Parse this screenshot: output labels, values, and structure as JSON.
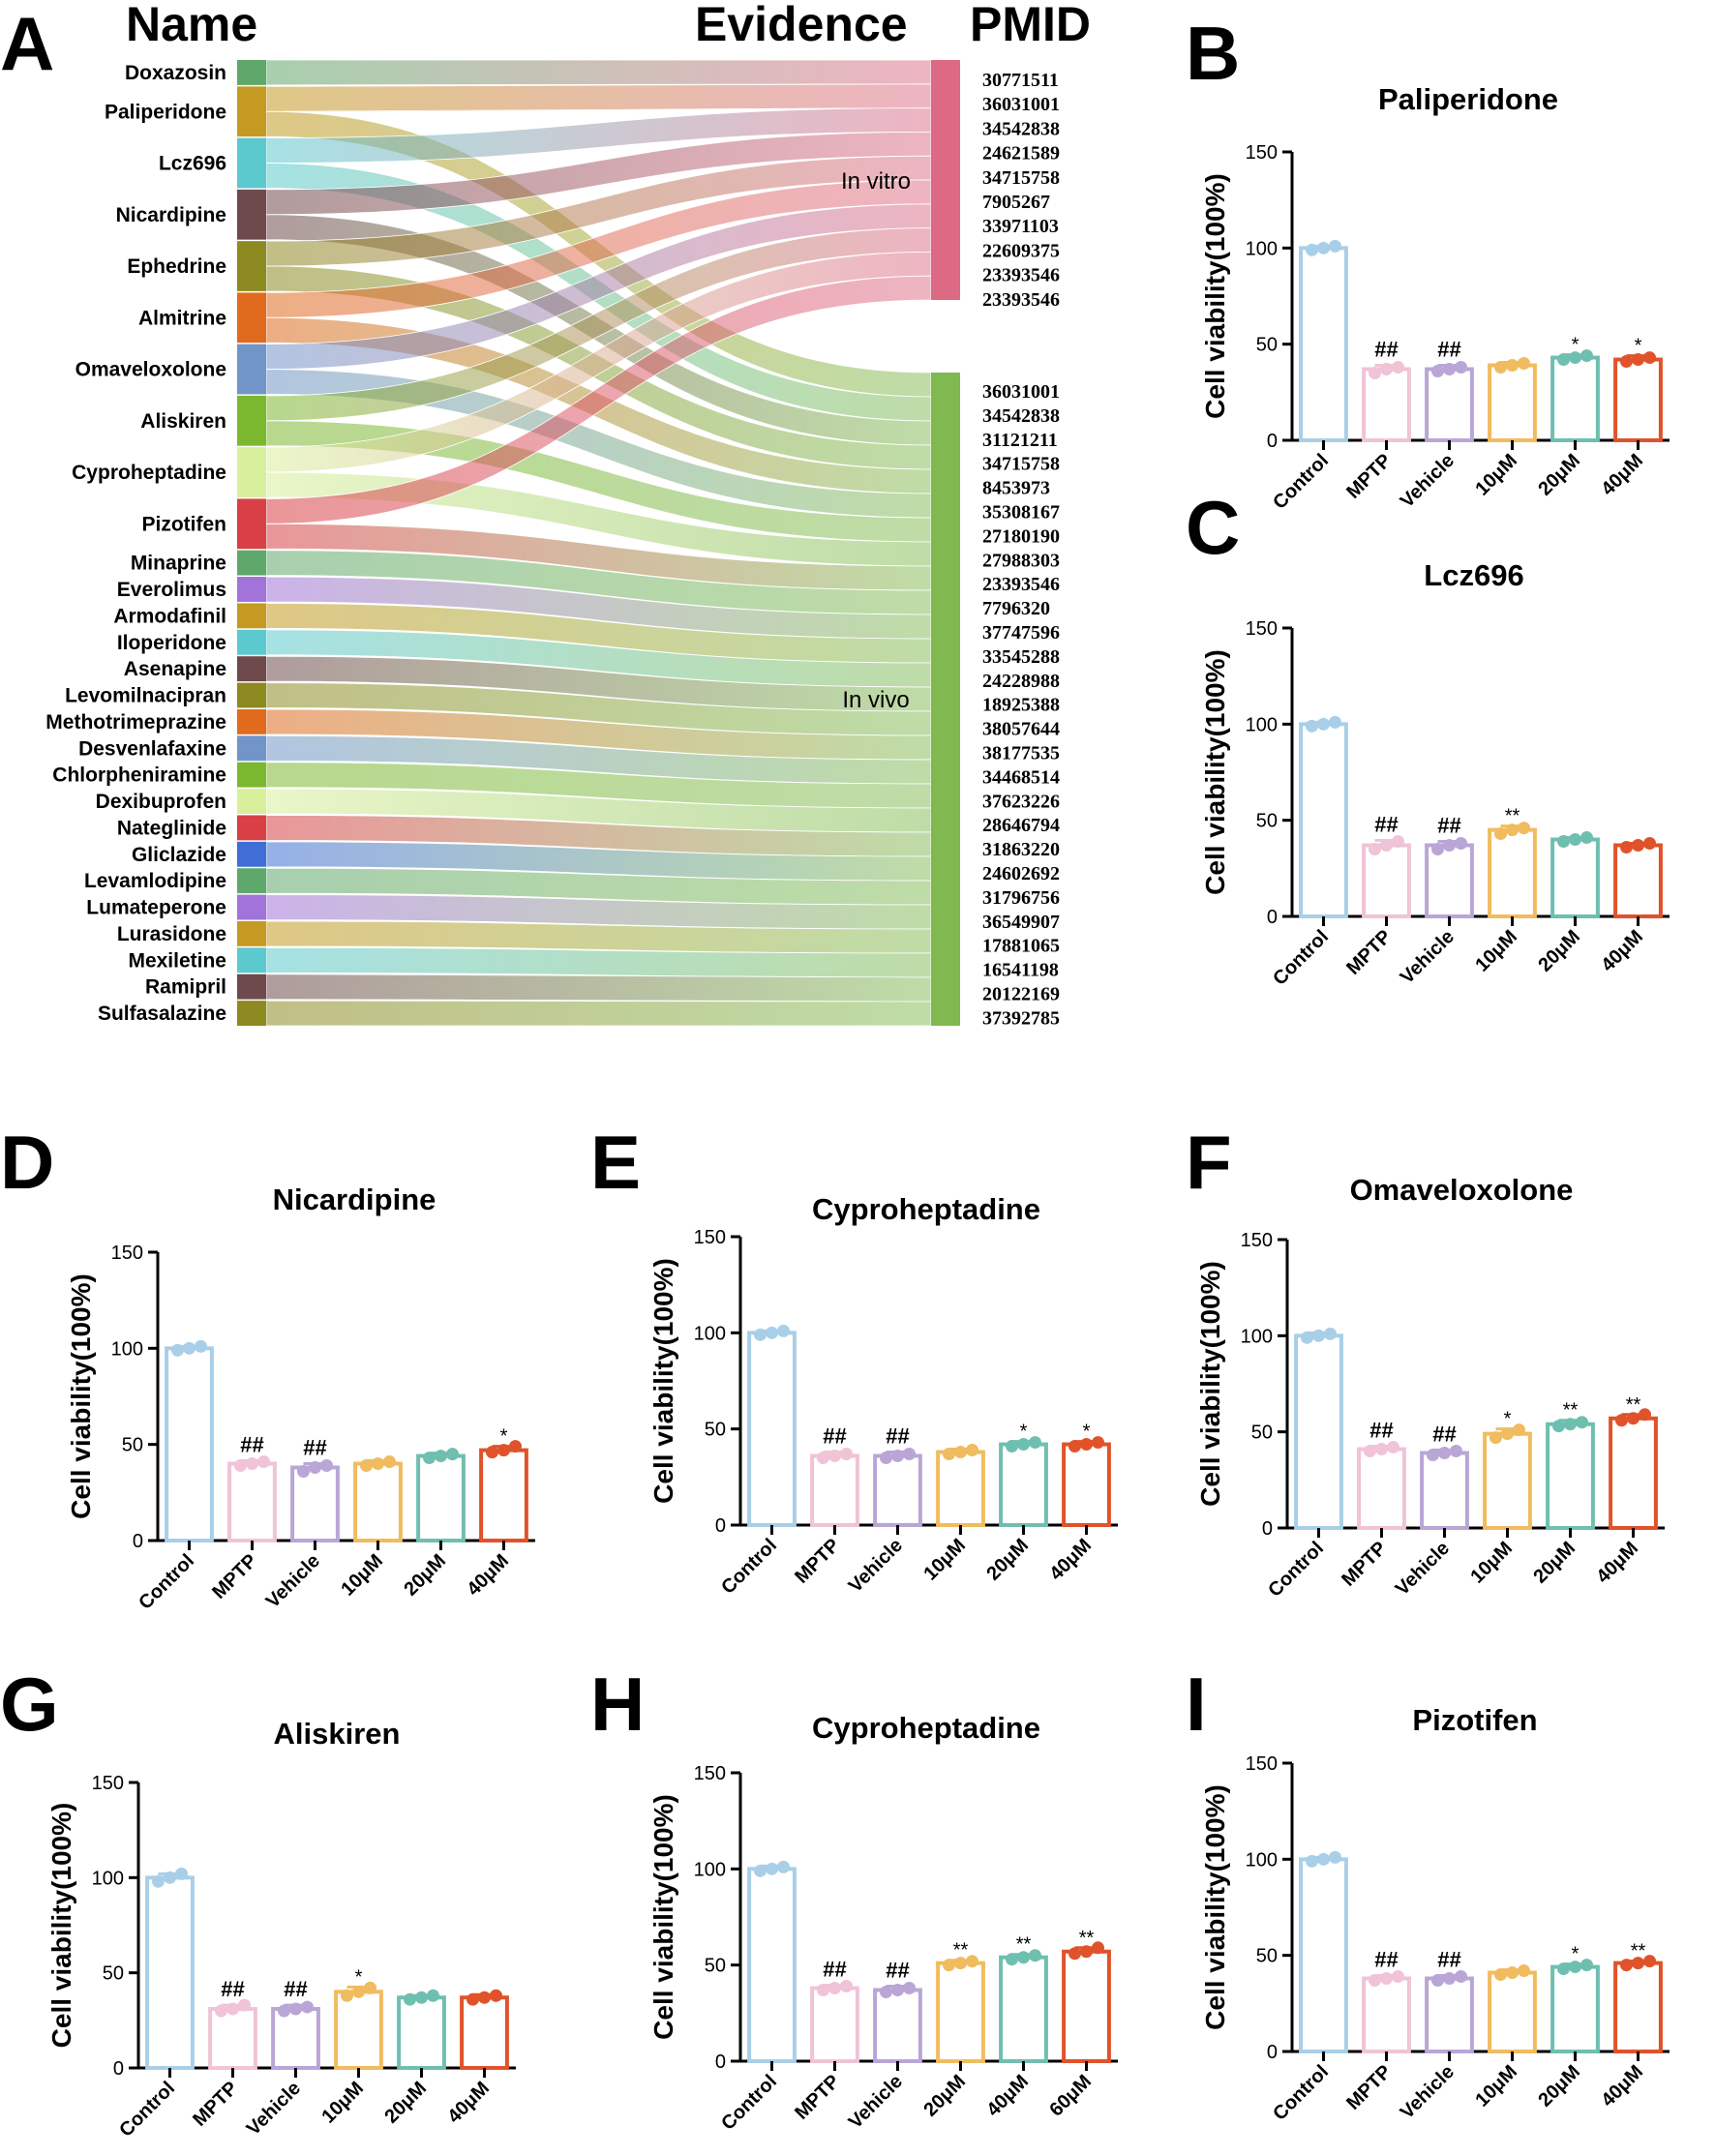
{
  "colors": {
    "control": "#a9cfe8",
    "mptp": "#f0c3d6",
    "vehicle": "#b9a6d6",
    "c1": "#f0bc5f",
    "c2": "#6fbfb0",
    "c3": "#e0532a",
    "invitro": "#dc6a85",
    "invivo": "#7fb94f"
  },
  "chart_data": [
    {
      "type": "sankey",
      "panel": "A",
      "headers": {
        "name": "Name",
        "evidence": "Evidence",
        "pmid": "PMID"
      },
      "targets": [
        {
          "name": "In vitro",
          "count": 10
        },
        {
          "name": "In vivo",
          "count": 27
        }
      ],
      "nodes": [
        {
          "name": "Doxazosin",
          "color": "#5fa86b",
          "links": [
            "In vitro"
          ]
        },
        {
          "name": "Paliperidone",
          "color": "#c49a22",
          "links": [
            "In vitro",
            "In vivo"
          ]
        },
        {
          "name": "Lcz696",
          "color": "#5cc9cf",
          "links": [
            "In vitro",
            "In vivo"
          ]
        },
        {
          "name": "Nicardipine",
          "color": "#6e4a4c",
          "links": [
            "In vitro",
            "In vivo"
          ]
        },
        {
          "name": "Ephedrine",
          "color": "#8d8a22",
          "links": [
            "In vitro",
            "In vivo"
          ]
        },
        {
          "name": "Almitrine",
          "color": "#e06b1e",
          "links": [
            "In vitro",
            "In vivo"
          ]
        },
        {
          "name": "Omaveloxolone",
          "color": "#7295c9",
          "links": [
            "In vitro",
            "In vivo"
          ]
        },
        {
          "name": "Aliskiren",
          "color": "#7cb82f",
          "links": [
            "In vitro",
            "In vivo"
          ]
        },
        {
          "name": "Cyproheptadine",
          "color": "#d8ef9c",
          "links": [
            "In vitro",
            "In vivo"
          ]
        },
        {
          "name": "Pizotifen",
          "color": "#d94045",
          "links": [
            "In vitro",
            "In vivo"
          ]
        },
        {
          "name": "Minaprine",
          "color": "#5fa86b",
          "links": [
            "In vivo"
          ]
        },
        {
          "name": "Everolimus",
          "color": "#a273d8",
          "links": [
            "In vivo"
          ]
        },
        {
          "name": "Armodafinil",
          "color": "#c49a22",
          "links": [
            "In vivo"
          ]
        },
        {
          "name": "Iloperidone",
          "color": "#5cc9cf",
          "links": [
            "In vivo"
          ]
        },
        {
          "name": "Asenapine",
          "color": "#6e4a4c",
          "links": [
            "In vivo"
          ]
        },
        {
          "name": "Levomilnacipran",
          "color": "#8d8a22",
          "links": [
            "In vivo"
          ]
        },
        {
          "name": "Methotrimeprazine",
          "color": "#e06b1e",
          "links": [
            "In vivo"
          ]
        },
        {
          "name": "Desvenlafaxine",
          "color": "#7295c9",
          "links": [
            "In vivo"
          ]
        },
        {
          "name": "Chlorpheniramine",
          "color": "#7cb82f",
          "links": [
            "In vivo"
          ]
        },
        {
          "name": "Dexibuprofen",
          "color": "#d8ef9c",
          "links": [
            "In vivo"
          ]
        },
        {
          "name": "Nateglinide",
          "color": "#d94045",
          "links": [
            "In vivo"
          ]
        },
        {
          "name": "Gliclazide",
          "color": "#3f6fd6",
          "links": [
            "In vivo"
          ]
        },
        {
          "name": "Levamlodipine",
          "color": "#5fa86b",
          "links": [
            "In vivo"
          ]
        },
        {
          "name": "Lumateperone",
          "color": "#a273d8",
          "links": [
            "In vivo"
          ]
        },
        {
          "name": "Lurasidone",
          "color": "#c49a22",
          "links": [
            "In vivo"
          ]
        },
        {
          "name": "Mexiletine",
          "color": "#5cc9cf",
          "links": [
            "In vivo"
          ]
        },
        {
          "name": "Ramipril",
          "color": "#6e4a4c",
          "links": [
            "In vivo"
          ]
        },
        {
          "name": "Sulfasalazine",
          "color": "#8d8a22",
          "links": [
            "In vivo"
          ]
        }
      ],
      "pmids_invitro": [
        "30771511",
        "36031001",
        "34542838",
        "24621589",
        "34715758",
        "7905267",
        "33971103",
        "22609375",
        "23393546",
        "23393546"
      ],
      "pmids_invivo": [
        "36031001",
        "34542838",
        "31121211",
        "34715758",
        "8453973",
        "35308167",
        "27180190",
        "27988303",
        "23393546",
        "7796320",
        "37747596",
        "33545288",
        "24228988",
        "18925388",
        "38057644",
        "38177535",
        "34468514",
        "37623226",
        "28646794",
        "31863220",
        "24602692",
        "31796756",
        "36549907",
        "17881065",
        "16541198",
        "20122169",
        "37392785"
      ]
    },
    {
      "type": "bar",
      "panel": "B",
      "title": "Paliperidone",
      "ylabel": "Cell viability(100%)",
      "ylim": [
        0,
        150
      ],
      "yticks": [
        0,
        50,
        100,
        150
      ],
      "categories": [
        "Control",
        "MPTP",
        "Vehicle",
        "10μM",
        "20μM",
        "40μM"
      ],
      "values": [
        100,
        37,
        37,
        39,
        43,
        42
      ],
      "errors": [
        1,
        2,
        2,
        1.5,
        1.5,
        2
      ],
      "points": [
        [
          99,
          100,
          101
        ],
        [
          35,
          37,
          38
        ],
        [
          36,
          37,
          38
        ],
        [
          38,
          39,
          40
        ],
        [
          42,
          43,
          44
        ],
        [
          41,
          42,
          43
        ]
      ],
      "annotations": [
        "",
        "##",
        "##",
        "",
        "*",
        "*"
      ]
    },
    {
      "type": "bar",
      "panel": "C",
      "title": "Lcz696",
      "ylabel": "Cell viability(100%)",
      "ylim": [
        0,
        150
      ],
      "yticks": [
        0,
        50,
        100,
        150
      ],
      "categories": [
        "Control",
        "MPTP",
        "Vehicle",
        "10μM",
        "20μM",
        "40μM"
      ],
      "values": [
        100,
        37,
        37,
        45,
        40,
        37
      ],
      "errors": [
        1,
        2.5,
        2,
        2,
        1,
        1
      ],
      "points": [
        [
          99,
          100,
          101
        ],
        [
          35,
          37,
          39
        ],
        [
          35,
          37,
          38
        ],
        [
          43,
          45,
          46
        ],
        [
          39,
          40,
          41
        ],
        [
          36,
          37,
          38
        ]
      ],
      "annotations": [
        "",
        "##",
        "##",
        "**",
        "",
        ""
      ]
    },
    {
      "type": "bar",
      "panel": "D",
      "title": "Nicardipine",
      "ylabel": "Cell viability(100%)",
      "ylim": [
        0,
        150
      ],
      "yticks": [
        0,
        50,
        100,
        150
      ],
      "categories": [
        "Control",
        "MPTP",
        "Vehicle",
        "10μM",
        "20μM",
        "40μM"
      ],
      "values": [
        100,
        40,
        38,
        40,
        44,
        47
      ],
      "errors": [
        1,
        1.5,
        2,
        1.5,
        1.5,
        2
      ],
      "points": [
        [
          99,
          100,
          101
        ],
        [
          39,
          40,
          41
        ],
        [
          36,
          38,
          39
        ],
        [
          39,
          40,
          41
        ],
        [
          43,
          44,
          45
        ],
        [
          46,
          47,
          49
        ]
      ],
      "annotations": [
        "",
        "##",
        "##",
        "",
        "",
        "*"
      ]
    },
    {
      "type": "bar",
      "panel": "E",
      "title": "Cyproheptadine",
      "ylabel": "Cell viability(100%)",
      "ylim": [
        0,
        150
      ],
      "yticks": [
        0,
        50,
        100,
        150
      ],
      "categories": [
        "Control",
        "MPTP",
        "Vehicle",
        "10μM",
        "20μM",
        "40μM"
      ],
      "values": [
        100,
        36,
        36,
        38,
        42,
        42
      ],
      "errors": [
        1,
        2,
        2,
        1.5,
        1.5,
        1.5
      ],
      "points": [
        [
          99,
          100,
          101
        ],
        [
          35,
          36,
          37
        ],
        [
          35,
          36,
          37
        ],
        [
          37,
          38,
          39
        ],
        [
          41,
          42,
          43
        ],
        [
          41,
          42,
          43
        ]
      ],
      "annotations": [
        "",
        "##",
        "##",
        "",
        "*",
        "*"
      ]
    },
    {
      "type": "bar",
      "panel": "F",
      "title": "Omaveloxolone",
      "ylabel": "Cell viability(100%)",
      "ylim": [
        0,
        150
      ],
      "yticks": [
        0,
        50,
        100,
        150
      ],
      "categories": [
        "Control",
        "MPTP",
        "Vehicle",
        "10μM",
        "20μM",
        "40μM"
      ],
      "values": [
        100,
        41,
        39,
        49,
        54,
        57
      ],
      "errors": [
        1.5,
        1.5,
        1.5,
        2.5,
        2,
        2
      ],
      "points": [
        [
          99,
          100,
          101
        ],
        [
          40,
          41,
          42
        ],
        [
          38,
          39,
          40
        ],
        [
          47,
          49,
          51
        ],
        [
          53,
          54,
          55
        ],
        [
          56,
          57,
          59
        ]
      ],
      "annotations": [
        "",
        "##",
        "##",
        "*",
        "**",
        "**"
      ]
    },
    {
      "type": "bar",
      "panel": "G",
      "title": "Aliskiren",
      "ylabel": "Cell viability(100%)",
      "ylim": [
        0,
        150
      ],
      "yticks": [
        0,
        50,
        100,
        150
      ],
      "categories": [
        "Control",
        "MPTP",
        "Vehicle",
        "10μM",
        "20μM",
        "40μM"
      ],
      "values": [
        100,
        31,
        31,
        40,
        37,
        37
      ],
      "errors": [
        2,
        2,
        2,
        2.5,
        1,
        1.5
      ],
      "points": [
        [
          98,
          100,
          102
        ],
        [
          30,
          31,
          33
        ],
        [
          30,
          31,
          32
        ],
        [
          38,
          40,
          42
        ],
        [
          36,
          37,
          38
        ],
        [
          36,
          37,
          38
        ]
      ],
      "annotations": [
        "",
        "##",
        "##",
        "*",
        "",
        ""
      ]
    },
    {
      "type": "bar",
      "panel": "H",
      "title": "Cyproheptadine",
      "ylabel": "Cell viability(100%)",
      "ylim": [
        0,
        150
      ],
      "yticks": [
        0,
        50,
        100,
        150
      ],
      "categories": [
        "Control",
        "MPTP",
        "Vehicle",
        "20μM",
        "40μM",
        "60μM"
      ],
      "values": [
        100,
        38,
        37,
        51,
        54,
        57
      ],
      "errors": [
        1.5,
        1.5,
        2,
        1.5,
        1.5,
        2
      ],
      "points": [
        [
          99,
          100,
          101
        ],
        [
          37,
          38,
          39
        ],
        [
          36,
          37,
          38
        ],
        [
          50,
          51,
          52
        ],
        [
          53,
          54,
          55
        ],
        [
          56,
          57,
          59
        ]
      ],
      "annotations": [
        "",
        "##",
        "##",
        "**",
        "**",
        "**"
      ]
    },
    {
      "type": "bar",
      "panel": "I",
      "title": "Pizotifen",
      "ylabel": "Cell viability(100%)",
      "ylim": [
        0,
        150
      ],
      "yticks": [
        0,
        50,
        100,
        150
      ],
      "categories": [
        "Control",
        "MPTP",
        "Vehicle",
        "10μM",
        "20μM",
        "40μM"
      ],
      "values": [
        100,
        38,
        38,
        41,
        44,
        46
      ],
      "errors": [
        1,
        1.5,
        1.5,
        1.5,
        1.5,
        1
      ],
      "points": [
        [
          99,
          100,
          101
        ],
        [
          37,
          38,
          39
        ],
        [
          37,
          38,
          39
        ],
        [
          40,
          41,
          42
        ],
        [
          43,
          44,
          45
        ],
        [
          45,
          46,
          47
        ]
      ],
      "annotations": [
        "",
        "##",
        "##",
        "",
        "*",
        "**"
      ]
    }
  ]
}
